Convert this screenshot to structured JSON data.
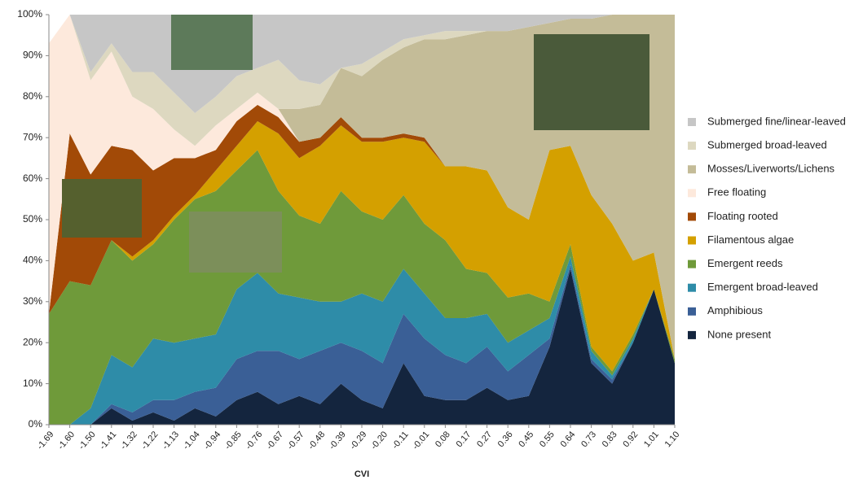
{
  "chart_data": {
    "type": "stacked_area",
    "x_label": "CVI",
    "categories": [
      "-1.69",
      "-1.60",
      "-1.50",
      "-1.41",
      "-1.32",
      "-1.22",
      "-1.13",
      "-1.04",
      "-0.94",
      "-0.85",
      "-0.76",
      "-0.67",
      "-0.57",
      "-0.48",
      "-0.39",
      "-0.29",
      "-0.20",
      "-0.11",
      "-0.01",
      "0.08",
      "0.17",
      "0.27",
      "0.36",
      "0.45",
      "0.55",
      "0.64",
      "0.73",
      "0.83",
      "0.92",
      "1.01",
      "1.10"
    ],
    "ylim": [
      0,
      100
    ],
    "yticks": [
      {
        "value": 0,
        "label": "0%"
      },
      {
        "value": 10,
        "label": "10%"
      },
      {
        "value": 20,
        "label": "20%"
      },
      {
        "value": 30,
        "label": "30%"
      },
      {
        "value": 40,
        "label": "40%"
      },
      {
        "value": 50,
        "label": "50%"
      },
      {
        "value": 60,
        "label": "60%"
      },
      {
        "value": 70,
        "label": "70%"
      },
      {
        "value": 80,
        "label": "80%"
      },
      {
        "value": 90,
        "label": "90%"
      },
      {
        "value": 100,
        "label": "100%"
      }
    ],
    "grid": false,
    "legend": "right",
    "series": [
      {
        "name": "None present",
        "color": "#14253e",
        "values": [
          0,
          0,
          0,
          4,
          1,
          3,
          1,
          4,
          2,
          6,
          8,
          5,
          7,
          5,
          10,
          6,
          4,
          15,
          7,
          6,
          6,
          9,
          6,
          7,
          19,
          38,
          15,
          10,
          20,
          33,
          15
        ]
      },
      {
        "name": "Amphibious",
        "color": "#3a5f96",
        "values": [
          0,
          0,
          0,
          1,
          2,
          3,
          5,
          4,
          7,
          10,
          10,
          13,
          9,
          13,
          10,
          12,
          11,
          12,
          14,
          11,
          9,
          10,
          7,
          10,
          2,
          1,
          1,
          1,
          0,
          0,
          0
        ]
      },
      {
        "name": "Emergent broad-leaved",
        "color": "#2e8ca8",
        "values": [
          0,
          0,
          4,
          12,
          11,
          15,
          14,
          13,
          13,
          17,
          19,
          14,
          15,
          12,
          10,
          14,
          15,
          11,
          11,
          9,
          11,
          8,
          7,
          6,
          5,
          2,
          2,
          1,
          1,
          0,
          0
        ]
      },
      {
        "name": "Emergent reeds",
        "color": "#6f9a3a",
        "values": [
          27,
          35,
          30,
          28,
          26,
          23,
          30,
          34,
          35,
          29,
          30,
          25,
          20,
          19,
          27,
          20,
          20,
          18,
          17,
          19,
          12,
          10,
          11,
          9,
          4,
          3,
          1,
          1,
          1,
          0,
          1
        ]
      },
      {
        "name": "Filamentous algae",
        "color": "#d4a000",
        "values": [
          0,
          0,
          0,
          0,
          1,
          1,
          1,
          1,
          5,
          6,
          7,
          14,
          14,
          19,
          16,
          17,
          19,
          14,
          20,
          18,
          25,
          25,
          22,
          18,
          37,
          24,
          37,
          36,
          18,
          9,
          0
        ]
      },
      {
        "name": "Floating rooted",
        "color": "#a24a07",
        "values": [
          0,
          36,
          27,
          23,
          26,
          17,
          14,
          9,
          5,
          6,
          4,
          4,
          4,
          2,
          2,
          1,
          1,
          1,
          1,
          0,
          0,
          0,
          0,
          0,
          0,
          0,
          0,
          0,
          0,
          0,
          0
        ]
      },
      {
        "name": "Free floating",
        "color": "#fde9dc",
        "values": [
          66,
          29,
          23,
          23,
          13,
          15,
          7,
          3,
          6,
          3,
          3,
          2,
          0,
          0,
          0,
          0,
          0,
          0,
          0,
          0,
          0,
          0,
          0,
          0,
          0,
          0,
          0,
          0,
          0,
          0,
          0
        ]
      },
      {
        "name": "Mosses/Liverworts/Lichens",
        "color": "#c4bc98",
        "values": [
          0,
          0,
          0,
          0,
          0,
          0,
          0,
          0,
          0,
          0,
          0,
          0,
          8,
          8,
          12,
          15,
          19,
          21,
          24,
          31,
          32,
          34,
          43,
          47,
          31,
          31,
          43,
          51,
          60,
          58,
          84
        ]
      },
      {
        "name": "Submerged broad-leaved",
        "color": "#ddd8c0",
        "values": [
          0,
          0,
          2,
          2,
          6,
          9,
          9,
          8,
          7,
          8,
          6,
          12,
          7,
          5,
          0,
          3,
          2,
          2,
          1,
          2,
          1,
          0,
          0,
          0,
          0,
          0,
          0,
          0,
          0,
          0,
          0
        ]
      },
      {
        "name": "Submerged fine/linear-leaved",
        "color": "#c6c6c6",
        "values": [
          0,
          0,
          14,
          7,
          14,
          14,
          19,
          24,
          20,
          15,
          13,
          11,
          16,
          17,
          13,
          12,
          9,
          6,
          5,
          4,
          4,
          4,
          4,
          3,
          2,
          1,
          1,
          0,
          0,
          0,
          0
        ]
      }
    ]
  }
}
